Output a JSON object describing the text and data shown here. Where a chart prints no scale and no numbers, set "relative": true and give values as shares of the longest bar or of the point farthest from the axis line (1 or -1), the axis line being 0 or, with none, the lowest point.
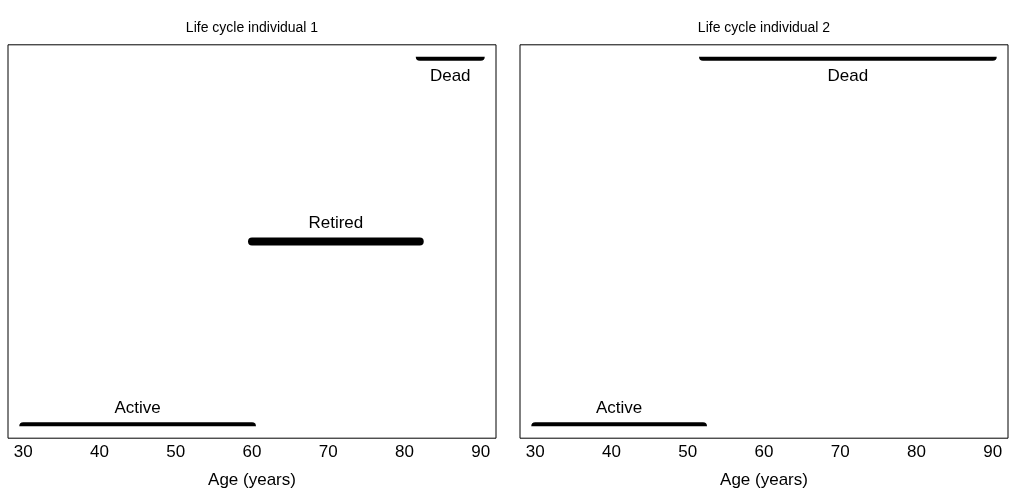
{
  "chart_data": [
    {
      "type": "line",
      "title": "Life cycle individual 1",
      "xlabel": "Age (years)",
      "relative": true,
      "xlim": [
        28,
        92
      ],
      "xticks": [
        30,
        40,
        50,
        60,
        70,
        80,
        90
      ],
      "tick_labels": "x",
      "grid": false,
      "marker": "none",
      "line_style": "solid",
      "series": [
        {
          "color": "#000000",
          "x": [
            30,
            60,
            null,
            60,
            82,
            null,
            82,
            90
          ],
          "values": [
            0,
            0,
            null,
            0.5,
            0.5,
            null,
            1,
            1
          ]
        }
      ],
      "annotations": [
        {
          "text": "Active",
          "x": 45,
          "y": 0
        },
        {
          "text": "Retired",
          "x": 71,
          "y": 0.5
        },
        {
          "text": "Dead",
          "x": 86,
          "y": 1
        }
      ]
    },
    {
      "type": "line",
      "title": "Life cycle individual 2",
      "xlabel": "Age (years)",
      "relative": true,
      "xlim": [
        28,
        92
      ],
      "xticks": [
        30,
        40,
        50,
        60,
        70,
        80,
        90
      ],
      "tick_labels": "x",
      "grid": false,
      "marker": "none",
      "line_style": "solid",
      "series": [
        {
          "color": "#000000",
          "x": [
            30,
            52,
            null,
            52,
            90
          ],
          "values": [
            0,
            0,
            null,
            1,
            1
          ]
        }
      ],
      "annotations": [
        {
          "text": "Active",
          "x": 41,
          "y": 0
        },
        {
          "text": "Dead",
          "x": 71,
          "y": 1
        }
      ]
    }
  ]
}
